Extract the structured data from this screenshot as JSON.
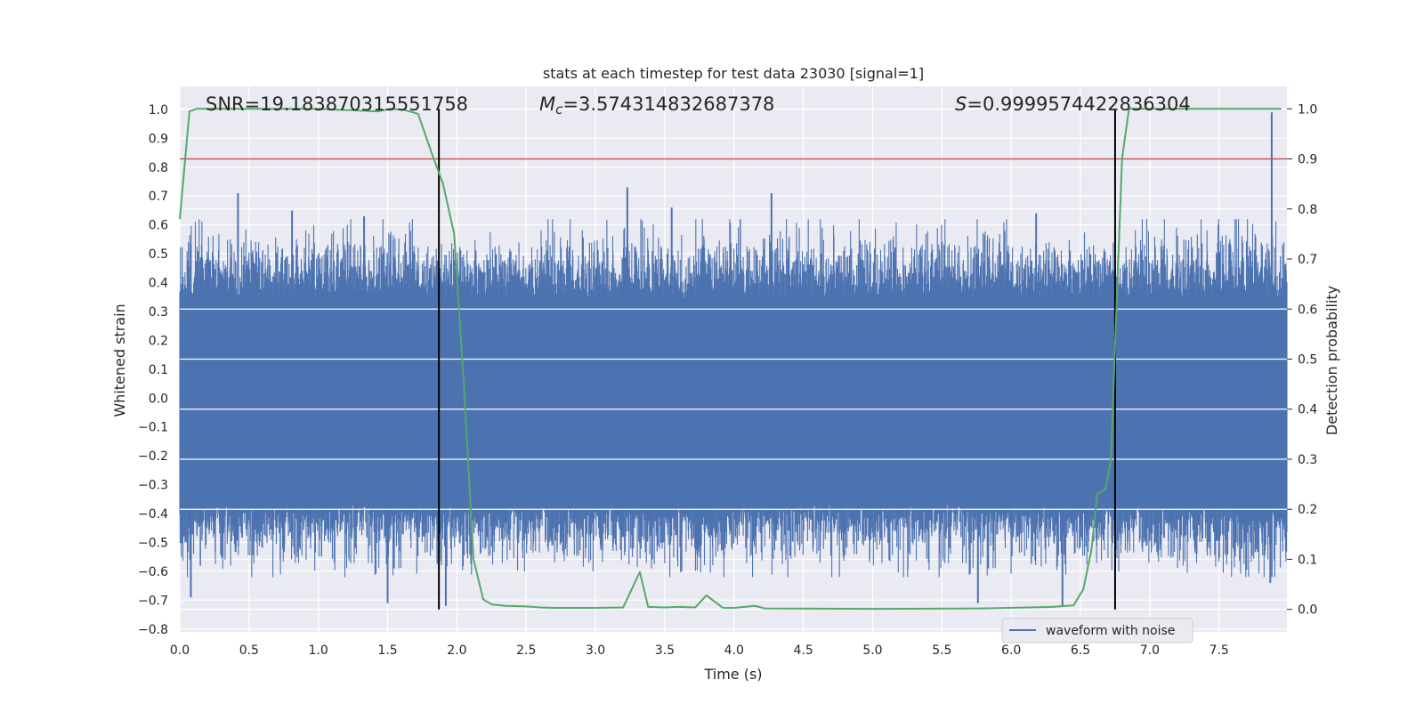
{
  "chart_data": {
    "type": "line",
    "title": "stats at each timestep for test data 23030 [signal=1]",
    "xlabel": "Time (s)",
    "ylabel": "Whitened strain",
    "y2label": "Detection probability",
    "xlim": [
      0.0,
      7.99
    ],
    "ylim": [
      -0.81,
      1.08
    ],
    "y2lim": [
      -0.045,
      1.045
    ],
    "xticks": [
      "0.0",
      "0.5",
      "1.0",
      "1.5",
      "2.0",
      "2.5",
      "3.0",
      "3.5",
      "4.0",
      "4.5",
      "5.0",
      "5.5",
      "6.0",
      "6.5",
      "7.0",
      "7.5"
    ],
    "yticks": [
      "1.0",
      "0.9",
      "0.8",
      "0.7",
      "0.6",
      "0.5",
      "0.4",
      "0.3",
      "0.2",
      "0.1",
      "0.0",
      "−0.1",
      "−0.2",
      "−0.3",
      "−0.4",
      "−0.5",
      "−0.6",
      "−0.7",
      "−0.8"
    ],
    "y2ticks": [
      "1.0",
      "0.9",
      "0.8",
      "0.7",
      "0.6",
      "0.5",
      "0.4",
      "0.3",
      "0.2",
      "0.1",
      "0.0"
    ],
    "grid": true,
    "legend": {
      "location": "lower-right",
      "entries": [
        "waveform with noise"
      ]
    },
    "annotations": {
      "snr": "SNR=19.183870315551758",
      "mc_symbol": "M",
      "mc_sub": "c",
      "mc_value": "=3.574314832687378",
      "s_symbol": "S",
      "s_value": "=0.9999574422836304"
    },
    "vertical_lines_x": [
      1.87,
      6.75
    ],
    "threshold_probability": 0.9,
    "series": [
      {
        "name": "waveform with noise",
        "axis": "left",
        "color": "#4c72b0",
        "envelope_peaks": [
          {
            "x": 0.42,
            "y": 0.71
          },
          {
            "x": 0.81,
            "y": 0.65
          },
          {
            "x": 1.33,
            "y": 0.63
          },
          {
            "x": 3.23,
            "y": 0.73
          },
          {
            "x": 3.55,
            "y": 0.66
          },
          {
            "x": 4.27,
            "y": 0.71
          },
          {
            "x": 6.18,
            "y": 0.64
          },
          {
            "x": 7.88,
            "y": 0.99
          },
          {
            "x": 1.5,
            "y": -0.71
          },
          {
            "x": 0.08,
            "y": -0.69
          },
          {
            "x": 1.92,
            "y": -0.72
          },
          {
            "x": 3.62,
            "y": -0.6
          },
          {
            "x": 5.76,
            "y": -0.71
          },
          {
            "x": 6.37,
            "y": -0.72
          },
          {
            "x": 7.87,
            "y": -0.64
          }
        ]
      },
      {
        "name": "detection probability",
        "axis": "right",
        "color": "#55a868",
        "x": [
          0.0,
          0.07,
          0.12,
          0.3,
          1.0,
          1.43,
          1.52,
          1.62,
          1.72,
          1.82,
          1.9,
          1.98,
          2.05,
          2.12,
          2.19,
          2.25,
          2.35,
          2.5,
          2.6,
          2.7,
          3.0,
          3.2,
          3.32,
          3.38,
          3.5,
          3.6,
          3.72,
          3.8,
          3.92,
          4.0,
          4.15,
          4.22,
          5.0,
          5.8,
          6.3,
          6.45,
          6.52,
          6.58,
          6.62,
          6.68,
          6.72,
          6.75,
          6.8,
          6.85,
          6.9,
          7.0,
          7.5,
          7.95
        ],
        "values": [
          0.78,
          0.995,
          1.0,
          1.0,
          1.0,
          0.995,
          1.0,
          0.998,
          0.99,
          0.91,
          0.85,
          0.75,
          0.45,
          0.1,
          0.02,
          0.01,
          0.007,
          0.006,
          0.004,
          0.003,
          0.003,
          0.004,
          0.075,
          0.005,
          0.004,
          0.005,
          0.004,
          0.028,
          0.003,
          0.003,
          0.007,
          0.002,
          0.001,
          0.002,
          0.005,
          0.008,
          0.04,
          0.12,
          0.23,
          0.24,
          0.3,
          0.53,
          0.9,
          1.0,
          1.0,
          1.0,
          1.0,
          1.0
        ]
      }
    ],
    "threshold_color": "#c44e52",
    "vline_color": "#000000"
  }
}
